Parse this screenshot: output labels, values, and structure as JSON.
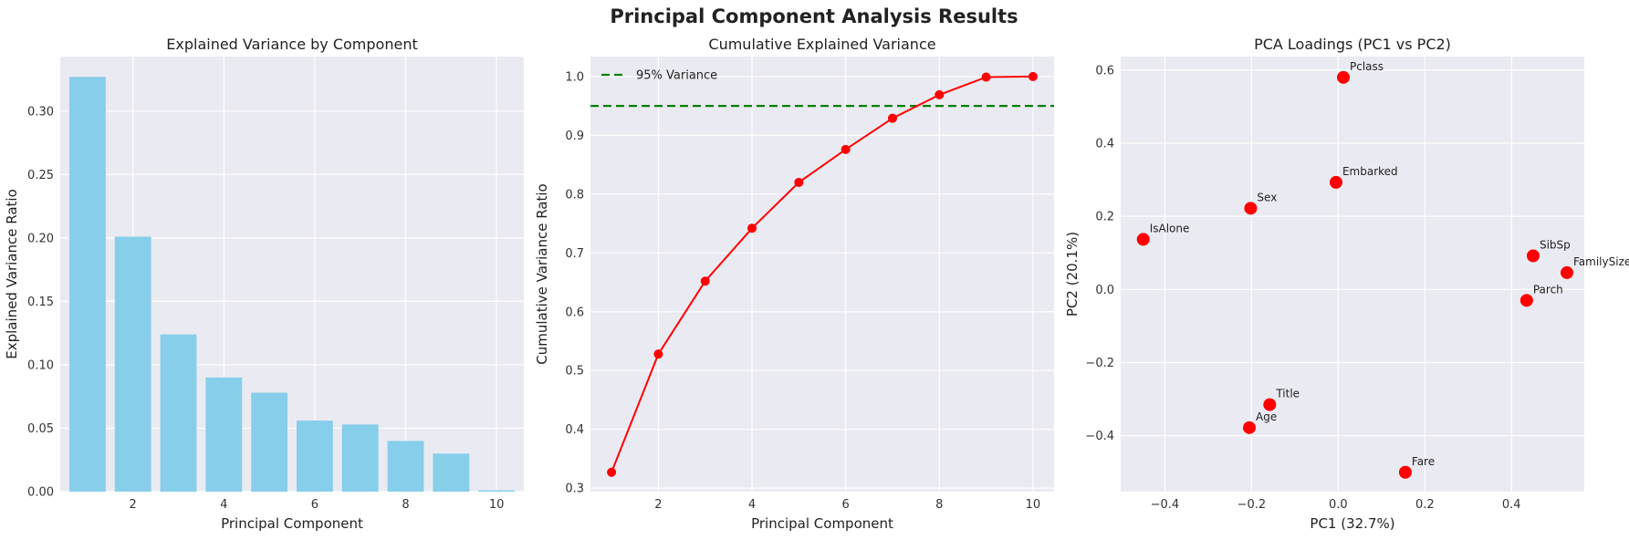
{
  "figure": {
    "title": "Principal Component Analysis Results"
  },
  "colors": {
    "background": "#eaeaf2",
    "grid": "#ffffff",
    "bar": "#87ceeb",
    "line": "#ff0000",
    "threshold": "#008000",
    "scatter": "#ff0000"
  },
  "chart_data": [
    {
      "type": "bar",
      "title": "Explained Variance by Component",
      "xlabel": "Principal Component",
      "ylabel": "Explained Variance Ratio",
      "x": [
        1,
        2,
        3,
        4,
        5,
        6,
        7,
        8,
        9,
        10
      ],
      "values": [
        0.327,
        0.201,
        0.124,
        0.09,
        0.078,
        0.056,
        0.053,
        0.04,
        0.03,
        0.001
      ],
      "xlim": [
        0.4,
        10.6
      ],
      "ylim": [
        0,
        0.343
      ],
      "xticks": [
        2,
        4,
        6,
        8,
        10
      ],
      "yticks": [
        0.0,
        0.05,
        0.1,
        0.15,
        0.2,
        0.25,
        0.3
      ],
      "grid": true
    },
    {
      "type": "line",
      "title": "Cumulative Explained Variance",
      "xlabel": "Principal Component",
      "ylabel": "Cumulative Variance Ratio",
      "x": [
        1,
        2,
        3,
        4,
        5,
        6,
        7,
        8,
        9,
        10
      ],
      "values": [
        0.327,
        0.528,
        0.652,
        0.742,
        0.82,
        0.876,
        0.929,
        0.969,
        0.999,
        1.0
      ],
      "threshold": {
        "value": 0.95,
        "label": "95% Variance"
      },
      "xlim": [
        0.55,
        10.45
      ],
      "ylim": [
        0.294,
        1.034
      ],
      "xticks": [
        2,
        4,
        6,
        8,
        10
      ],
      "yticks": [
        0.3,
        0.4,
        0.5,
        0.6,
        0.7,
        0.8,
        0.9,
        1.0
      ],
      "legend_position": "top-left",
      "grid": true
    },
    {
      "type": "scatter",
      "title": "PCA Loadings (PC1 vs PC2)",
      "xlabel": "PC1 (32.7%)",
      "ylabel": "PC2 (20.1%)",
      "points": [
        {
          "label": "Pclass",
          "x": 0.012,
          "y": 0.58
        },
        {
          "label": "Embarked",
          "x": -0.005,
          "y": 0.293
        },
        {
          "label": "Sex",
          "x": -0.202,
          "y": 0.222
        },
        {
          "label": "IsAlone",
          "x": -0.45,
          "y": 0.137
        },
        {
          "label": "SibSp",
          "x": 0.45,
          "y": 0.092
        },
        {
          "label": "FamilySize",
          "x": 0.528,
          "y": 0.046
        },
        {
          "label": "Parch",
          "x": 0.435,
          "y": -0.03
        },
        {
          "label": "Title",
          "x": -0.158,
          "y": -0.315
        },
        {
          "label": "Age",
          "x": -0.205,
          "y": -0.378
        },
        {
          "label": "Fare",
          "x": 0.155,
          "y": -0.5
        }
      ],
      "xlim": [
        -0.502,
        0.568
      ],
      "ylim": [
        -0.553,
        0.637
      ],
      "xticks": [
        -0.4,
        -0.2,
        0.0,
        0.2,
        0.4
      ],
      "yticks": [
        -0.4,
        -0.2,
        0.0,
        0.2,
        0.4,
        0.6
      ],
      "grid": true
    }
  ]
}
